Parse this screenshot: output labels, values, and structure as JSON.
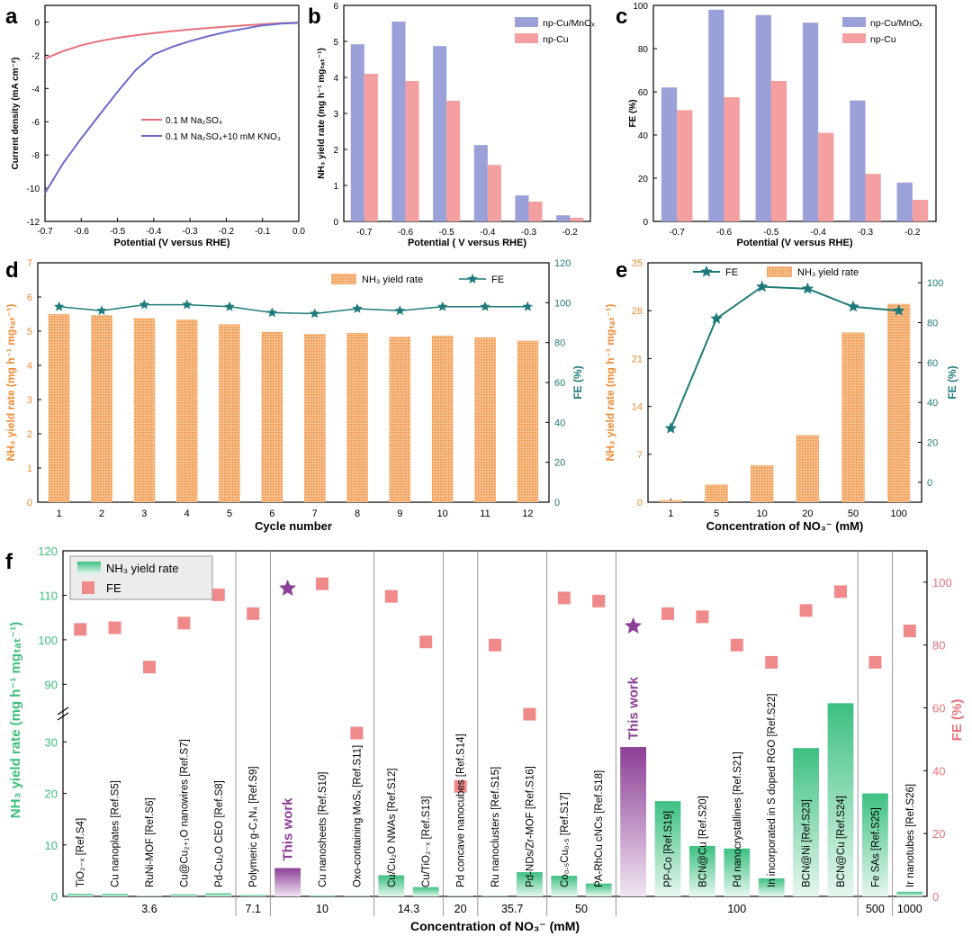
{
  "panel_labels": [
    "a",
    "b",
    "c",
    "d",
    "e",
    "f"
  ],
  "colors": {
    "red_line": "#e8707a",
    "blue_line": "#6a6acb",
    "blue_bar": "#9aa0d8",
    "pink_bar": "#f5a0a0",
    "orange": "#f0a060",
    "orange_text": "#ee8a32",
    "teal": "#1e7a7a",
    "green": "#3cc080",
    "green_text": "#3cbf7a",
    "purple": "#8c3f96",
    "fe_pink": "#f08a8a",
    "fe_axis": "#e8707a"
  },
  "chart_data": [
    {
      "panel": "a",
      "type": "line",
      "xlabel": "Potential (V versus RHE)",
      "ylabel": "Current density (mA cm⁻²)",
      "xlim": [
        -0.7,
        0.0
      ],
      "ylim": [
        -12,
        1
      ],
      "xticks": [
        "-0.7",
        "-0.6",
        "-0.5",
        "-0.4",
        "-0.3",
        "-0.2",
        "-0.1",
        "0.0"
      ],
      "yticks": [
        "0",
        "-2",
        "-4",
        "-6",
        "-8",
        "-10",
        "-12"
      ],
      "series": [
        {
          "name": "0.1 M Na₂SO₄",
          "color": "red",
          "x": [
            -0.7,
            -0.65,
            -0.6,
            -0.55,
            -0.5,
            -0.45,
            -0.4,
            -0.35,
            -0.3,
            -0.25,
            -0.2,
            -0.15,
            -0.1,
            -0.05,
            0.0
          ],
          "y": [
            -2.2,
            -1.75,
            -1.4,
            -1.15,
            -0.95,
            -0.8,
            -0.67,
            -0.55,
            -0.45,
            -0.36,
            -0.28,
            -0.2,
            -0.13,
            -0.07,
            -0.03
          ]
        },
        {
          "name": "0.1 M Na₂SO₄+10 mM KNO₃",
          "color": "blue",
          "x": [
            -0.7,
            -0.65,
            -0.6,
            -0.55,
            -0.5,
            -0.45,
            -0.4,
            -0.35,
            -0.3,
            -0.25,
            -0.2,
            -0.15,
            -0.1,
            -0.05,
            0.0
          ],
          "y": [
            -10.3,
            -8.5,
            -7.0,
            -5.6,
            -4.2,
            -2.9,
            -1.95,
            -1.5,
            -1.15,
            -0.85,
            -0.6,
            -0.4,
            -0.2,
            -0.1,
            -0.05
          ]
        }
      ]
    },
    {
      "panel": "b",
      "type": "bar",
      "ylabel": "NH₃ yield rate (mg h⁻¹ mgₜₐₜ⁻¹)",
      "xlabel": "Potential ( V versus RHE)",
      "categories": [
        "-0.7",
        "-0.6",
        "-0.5",
        "-0.4",
        "-0.3",
        "-0.2"
      ],
      "ylim": [
        0,
        6
      ],
      "yticks": [
        "0",
        "1",
        "2",
        "3",
        "4",
        "5",
        "6"
      ],
      "series": [
        {
          "name": "np-Cu/MnOₓ",
          "values": [
            4.92,
            5.55,
            4.87,
            2.12,
            0.72,
            0.17
          ]
        },
        {
          "name": "np-Cu",
          "values": [
            4.1,
            3.9,
            3.35,
            1.57,
            0.55,
            0.1
          ]
        }
      ]
    },
    {
      "panel": "c",
      "type": "bar",
      "ylabel": "FE (%)",
      "xlabel": "Potential (V versus RHE)",
      "categories": [
        "-0.7",
        "-0.6",
        "-0.5",
        "-0.4",
        "-0.3",
        "-0.2"
      ],
      "ylim": [
        0,
        100
      ],
      "yticks": [
        "0",
        "20",
        "40",
        "60",
        "80",
        "100"
      ],
      "series": [
        {
          "name": "np-Cu/MnOₓ",
          "values": [
            62,
            98,
            95.5,
            92,
            56,
            18
          ]
        },
        {
          "name": "np-Cu",
          "values": [
            51.5,
            57.5,
            65,
            41,
            22,
            10
          ]
        }
      ]
    },
    {
      "panel": "d",
      "type": "bar+line",
      "xlabel": "Cycle number",
      "ylabel_left": "NH₃ yield rate (mg h⁻¹ mgₜₐₜ⁻¹)",
      "ylabel_right": "FE (%)",
      "categories": [
        "1",
        "2",
        "3",
        "4",
        "5",
        "6",
        "7",
        "8",
        "9",
        "10",
        "11",
        "12"
      ],
      "ylim_left": [
        0,
        7
      ],
      "ylim_right": [
        0,
        120
      ],
      "yticks_left": [
        "0",
        "1",
        "2",
        "3",
        "4",
        "5",
        "6",
        "7"
      ],
      "yticks_right": [
        "0",
        "20",
        "40",
        "60",
        "80",
        "100",
        "120"
      ],
      "series": [
        {
          "name": "NH₃ yield rate",
          "axis": "left",
          "values": [
            5.5,
            5.47,
            5.38,
            5.34,
            5.2,
            4.98,
            4.92,
            4.95,
            4.84,
            4.87,
            4.82,
            4.72
          ]
        },
        {
          "name": "FE",
          "axis": "right",
          "values": [
            98,
            96,
            99,
            99,
            98,
            95,
            94.5,
            97,
            96,
            98,
            98,
            98
          ]
        }
      ]
    },
    {
      "panel": "e",
      "type": "bar+line",
      "xlabel": "Concentration of NO₃⁻ (mM)",
      "ylabel_left": "NH₃ yield rate (mg h⁻¹ mgₜₐₜ⁻¹)",
      "ylabel_right": "FE (%)",
      "categories": [
        "1",
        "5",
        "10",
        "20",
        "50",
        "100"
      ],
      "ylim_left": [
        0,
        35
      ],
      "ylim_right": [
        -10,
        110
      ],
      "yticks_left": [
        "0",
        "7",
        "14",
        "21",
        "28",
        "35"
      ],
      "yticks_right": [
        "0",
        "20",
        "40",
        "60",
        "80",
        "100"
      ],
      "series": [
        {
          "name": "NH₃ yield rate",
          "axis": "left",
          "values": [
            0.3,
            2.6,
            5.4,
            9.8,
            24.8,
            29
          ]
        },
        {
          "name": "FE",
          "axis": "right",
          "values": [
            27,
            82,
            98,
            97,
            88,
            86
          ]
        }
      ]
    },
    {
      "panel": "f",
      "type": "bar+scatter",
      "xlabel": "Concentration of NO₃⁻ (mM)",
      "ylabel_left": "NH₃ yield rate (mg h⁻¹ mgₜₐₜ⁻¹)",
      "ylabel_right": "FE (%)",
      "yticks_left_lower": [
        "0",
        "10",
        "20",
        "30"
      ],
      "yticks_left_upper": [
        "90",
        "100",
        "110",
        "120"
      ],
      "yticks_right": [
        "0",
        "20",
        "40",
        "60",
        "80",
        "100"
      ],
      "legend": [
        "NH₃ yield rate",
        "FE"
      ],
      "groups": [
        {
          "label": "3.6",
          "items": [
            {
              "name": "TiO₂₋ₓ [Ref.S4]",
              "yield": 0.5,
              "fe": 85
            },
            {
              "name": "Cu nanoplates [Ref.S5]",
              "yield": 0.5,
              "fe": 85.5
            },
            {
              "name": "RuNi-MOF [Ref.S6]",
              "yield": 0.1,
              "fe": 73
            },
            {
              "name": "Cu@Cu₂₊₁O nanowires [Ref.S7]",
              "yield": 0.4,
              "fe": 87
            },
            {
              "name": "Pd-Cu₂O CEO [Ref.S8]",
              "yield": 0.6,
              "fe": 96
            }
          ]
        },
        {
          "label": "7.1",
          "items": [
            {
              "name": "Polymeric g-C₃N₄ [Ref.S9]",
              "yield": 0.3,
              "fe": 90
            }
          ]
        },
        {
          "label": "10",
          "items": [
            {
              "name": "This work",
              "yield": 5.5,
              "fe": 98,
              "highlight": true
            },
            {
              "name": "Cu nanosheets [Ref.S10]",
              "yield": 0.2,
              "fe": 99.5
            },
            {
              "name": "Oxo-containing MoSₓ [Ref.S11]",
              "yield": 0.1,
              "fe": 52
            }
          ]
        },
        {
          "label": "14.3",
          "items": [
            {
              "name": "Cu/Cu₂O NWAs [Ref.S12]",
              "yield": 4.1,
              "fe": 95.5
            },
            {
              "name": "Cu/TiO₂₋ₓ [Ref.S13]",
              "yield": 1.8,
              "fe": 81
            }
          ]
        },
        {
          "label": "20",
          "items": [
            {
              "name": "Pd concave nanocubes [Ref.S14]",
              "yield": 0.1,
              "fe": 35
            }
          ]
        },
        {
          "label": "35.7",
          "items": [
            {
              "name": "Ru nanoclusters [Ref.S15]",
              "yield": 0.1,
              "fe": 80
            },
            {
              "name": "Pd-NDs/Zr-MOF [Ref.S16]",
              "yield": 4.7,
              "fe": 58
            }
          ]
        },
        {
          "label": "50",
          "items": [
            {
              "name": "Co₀.₅Cu₀.₅ [Ref.S17]",
              "yield": 4.0,
              "fe": 95
            },
            {
              "name": "PA-RhCu cNCs [Ref.S18]",
              "yield": 2.5,
              "fe": 94
            }
          ]
        },
        {
          "label": "100",
          "items": [
            {
              "name": "This work",
              "yield": 29,
              "fe": 86,
              "highlight": true
            },
            {
              "name": "PP-Co [Ref.S19]",
              "yield": 18.5,
              "fe": 90
            },
            {
              "name": "BCN@Cu [Ref.S20]",
              "yield": 9.8,
              "fe": 89
            },
            {
              "name": "Pd nanocrystallines [Ref.S21]",
              "yield": 9.3,
              "fe": 80
            },
            {
              "name": "In incorporated in S doped RGO [Ref.S22]",
              "yield": 3.5,
              "fe": 74.5
            },
            {
              "name": "BCN@Ni [Ref.S23]",
              "yield": 28.8,
              "fe": 91
            },
            {
              "name": "BCN@Cu [Ref.S24]",
              "yield": 62,
              "fe": 97
            }
          ]
        },
        {
          "label": "500",
          "items": [
            {
              "name": "Fe SAs [Ref.S25]",
              "yield": 20,
              "fe": 74.5
            }
          ]
        },
        {
          "label": "1000",
          "items": [
            {
              "name": "Ir nanotubes [Ref.S26]",
              "yield": 0.9,
              "fe": 84.5
            }
          ]
        }
      ]
    }
  ]
}
